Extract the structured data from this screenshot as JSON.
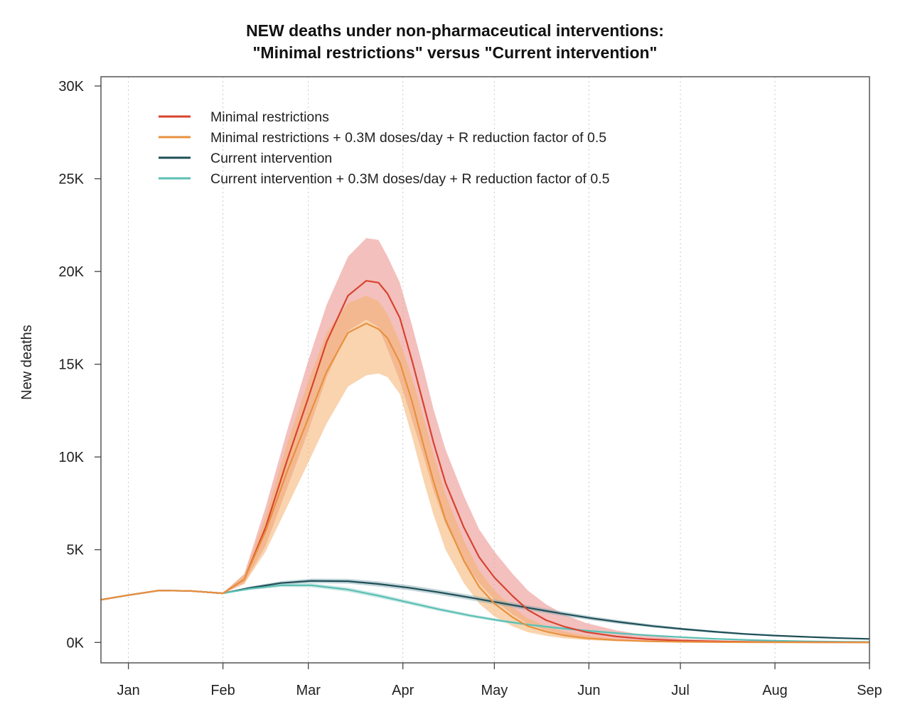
{
  "chart_data": {
    "type": "line",
    "title_line1": "NEW deaths under non-pharmaceutical interventions:",
    "title_line2": "\"Minimal restrictions\" versus \"Current intervention\"",
    "xlabel": "",
    "ylabel": "New deaths",
    "x_ticks": [
      "Jan",
      "Feb",
      "Mar",
      "Apr",
      "May",
      "Jun",
      "Jul",
      "Aug",
      "Sep"
    ],
    "y_ticks": [
      "0K",
      "5K",
      "10K",
      "15K",
      "20K",
      "25K",
      "30K"
    ],
    "xlim_days": [
      -9,
      243
    ],
    "ylim": [
      -1100,
      30500
    ],
    "grid": "vertical dotted at month starts",
    "legend_position": "top-left",
    "x_unit": "days from 1 Jan",
    "series": [
      {
        "name": "Minimal restrictions",
        "color": "#d7432f",
        "band_color": "#ec9a95",
        "band_opacity": 0.62,
        "x": [
          -9,
          0,
          10,
          20,
          31,
          38,
          45,
          52,
          59,
          65,
          72,
          78,
          82,
          85,
          89,
          93,
          97,
          100,
          104,
          110,
          115,
          120,
          126,
          131,
          137,
          143,
          150,
          160,
          170,
          181,
          195,
          212,
          227,
          243
        ],
        "y": [
          2300,
          2550,
          2800,
          2780,
          2650,
          3400,
          6200,
          9800,
          13200,
          16200,
          18700,
          19500,
          19400,
          18800,
          17500,
          15200,
          12700,
          10800,
          8600,
          6200,
          4600,
          3500,
          2500,
          1750,
          1200,
          850,
          560,
          320,
          180,
          100,
          50,
          20,
          10,
          5
        ],
        "lower": [
          2300,
          2540,
          2790,
          2760,
          2630,
          3200,
          5200,
          8300,
          11400,
          14300,
          16800,
          17400,
          17000,
          15800,
          14100,
          12000,
          9900,
          8200,
          6400,
          4400,
          3200,
          2300,
          1500,
          1000,
          650,
          420,
          260,
          140,
          80,
          40,
          18,
          8,
          4,
          2
        ],
        "upper": [
          2300,
          2560,
          2810,
          2800,
          2670,
          3700,
          7300,
          11400,
          15200,
          18200,
          20800,
          21800,
          21700,
          20800,
          19400,
          17100,
          14600,
          12600,
          10400,
          7900,
          6100,
          4900,
          3700,
          2800,
          2050,
          1500,
          1050,
          650,
          380,
          210,
          110,
          50,
          25,
          12
        ]
      },
      {
        "name": "Minimal restrictions + 0.3M doses/day + R reduction factor of 0.5",
        "color": "#e8913e",
        "band_color": "#f4b06e",
        "band_opacity": 0.55,
        "x": [
          -9,
          0,
          10,
          20,
          31,
          38,
          45,
          52,
          59,
          65,
          72,
          78,
          82,
          85,
          89,
          93,
          97,
          100,
          104,
          110,
          115,
          120,
          126,
          131,
          137,
          143,
          150,
          160,
          170,
          181,
          195,
          212,
          227,
          243
        ],
        "y": [
          2300,
          2550,
          2800,
          2780,
          2650,
          3400,
          6000,
          9200,
          12100,
          14600,
          16700,
          17200,
          16900,
          16400,
          15100,
          13000,
          10500,
          8700,
          6600,
          4400,
          3000,
          2100,
          1350,
          880,
          580,
          380,
          230,
          120,
          65,
          35,
          15,
          7,
          3,
          2
        ],
        "lower": [
          2300,
          2540,
          2790,
          2760,
          2630,
          3150,
          4900,
          7300,
          9700,
          11800,
          13800,
          14400,
          14500,
          14300,
          13400,
          11100,
          8600,
          6900,
          5000,
          3200,
          2100,
          1400,
          870,
          550,
          350,
          220,
          130,
          70,
          40,
          20,
          9,
          4,
          2,
          1
        ],
        "upper": [
          2300,
          2560,
          2810,
          2800,
          2670,
          3650,
          6800,
          10700,
          14100,
          16700,
          18300,
          18700,
          18400,
          17700,
          16200,
          14300,
          12000,
          10200,
          8000,
          5500,
          3900,
          2800,
          1900,
          1300,
          880,
          590,
          370,
          200,
          110,
          60,
          27,
          12,
          6,
          3
        ]
      },
      {
        "name": "Current intervention",
        "color": "#1e4f57",
        "band_color": "#7da5ad",
        "band_opacity": 0.45,
        "x": [
          -9,
          0,
          10,
          20,
          31,
          40,
          50,
          60,
          72,
          82,
          92,
          102,
          112,
          122,
          132,
          142,
          152,
          162,
          172,
          182,
          192,
          202,
          212,
          222,
          232,
          243
        ],
        "y": [
          2300,
          2550,
          2800,
          2780,
          2650,
          2950,
          3200,
          3320,
          3300,
          3150,
          2950,
          2700,
          2420,
          2130,
          1840,
          1560,
          1300,
          1080,
          880,
          720,
          580,
          460,
          370,
          300,
          240,
          190
        ],
        "lower": [
          2300,
          2540,
          2790,
          2760,
          2630,
          2880,
          3100,
          3200,
          3170,
          3010,
          2810,
          2560,
          2280,
          2000,
          1710,
          1440,
          1190,
          980,
          800,
          650,
          520,
          410,
          330,
          260,
          210,
          160
        ],
        "upper": [
          2300,
          2560,
          2810,
          2800,
          2670,
          3020,
          3300,
          3440,
          3430,
          3290,
          3090,
          2840,
          2560,
          2260,
          1970,
          1680,
          1410,
          1180,
          970,
          790,
          640,
          510,
          410,
          330,
          270,
          220
        ]
      },
      {
        "name": "Current intervention + 0.3M doses/day + R reduction factor of 0.5",
        "color": "#5cbfb4",
        "band_color": "#9fd8d1",
        "band_opacity": 0.5,
        "x": [
          -9,
          0,
          10,
          20,
          31,
          40,
          50,
          60,
          72,
          82,
          92,
          102,
          112,
          122,
          132,
          142,
          152,
          162,
          172,
          182,
          192,
          202,
          212,
          222,
          232,
          243
        ],
        "y": [
          2300,
          2550,
          2800,
          2780,
          2650,
          2900,
          3080,
          3080,
          2850,
          2520,
          2150,
          1780,
          1450,
          1170,
          940,
          760,
          610,
          480,
          370,
          280,
          200,
          140,
          95,
          60,
          40,
          25
        ],
        "lower": [
          2300,
          2540,
          2790,
          2760,
          2630,
          2830,
          2990,
          2970,
          2730,
          2400,
          2040,
          1680,
          1360,
          1090,
          870,
          690,
          550,
          430,
          330,
          245,
          175,
          120,
          80,
          50,
          33,
          20
        ],
        "upper": [
          2300,
          2560,
          2810,
          2800,
          2670,
          2970,
          3170,
          3190,
          2970,
          2640,
          2260,
          1880,
          1540,
          1250,
          1010,
          830,
          670,
          530,
          410,
          315,
          225,
          160,
          110,
          70,
          47,
          30
        ]
      }
    ]
  }
}
